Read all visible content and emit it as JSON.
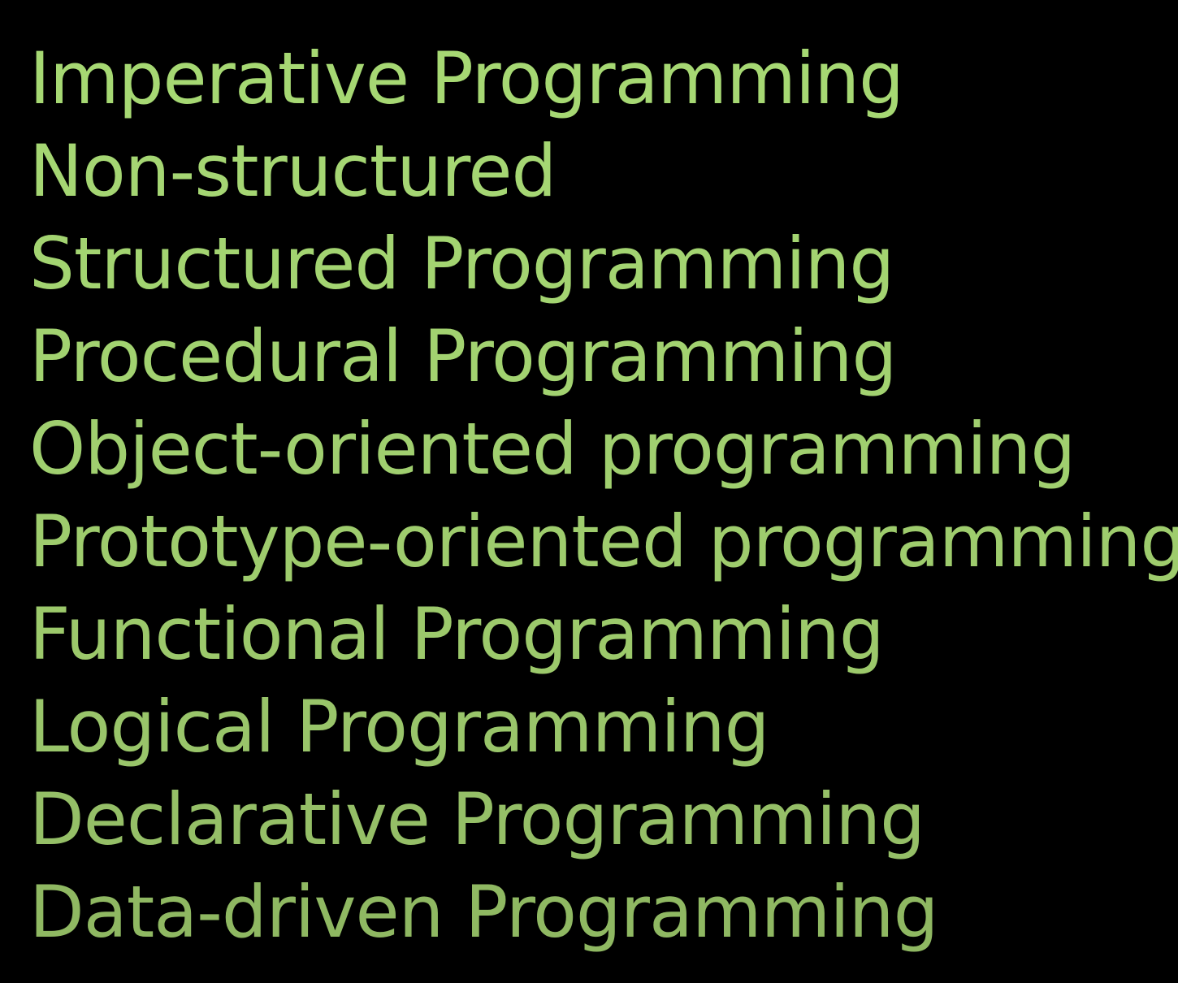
{
  "items": [
    {
      "label": "Imperative Programming",
      "color": "#a6d873"
    },
    {
      "label": "Non-structured",
      "color": "#a5d673"
    },
    {
      "label": "Structured Programming",
      "color": "#a3d471"
    },
    {
      "label": "Procedural Programming",
      "color": "#a2d270"
    },
    {
      "label": "Object-oriented programming",
      "color": "#a0cf6f"
    },
    {
      "label": "Prototype-oriented programming",
      "color": "#9ecc6d"
    },
    {
      "label": "Functional Programming",
      "color": "#9cc96b"
    },
    {
      "label": "Logical Programming",
      "color": "#99c56a"
    },
    {
      "label": "Declarative Programming",
      "color": "#95bf67"
    },
    {
      "label": "Data-driven Programming",
      "color": "#8fb862"
    }
  ]
}
